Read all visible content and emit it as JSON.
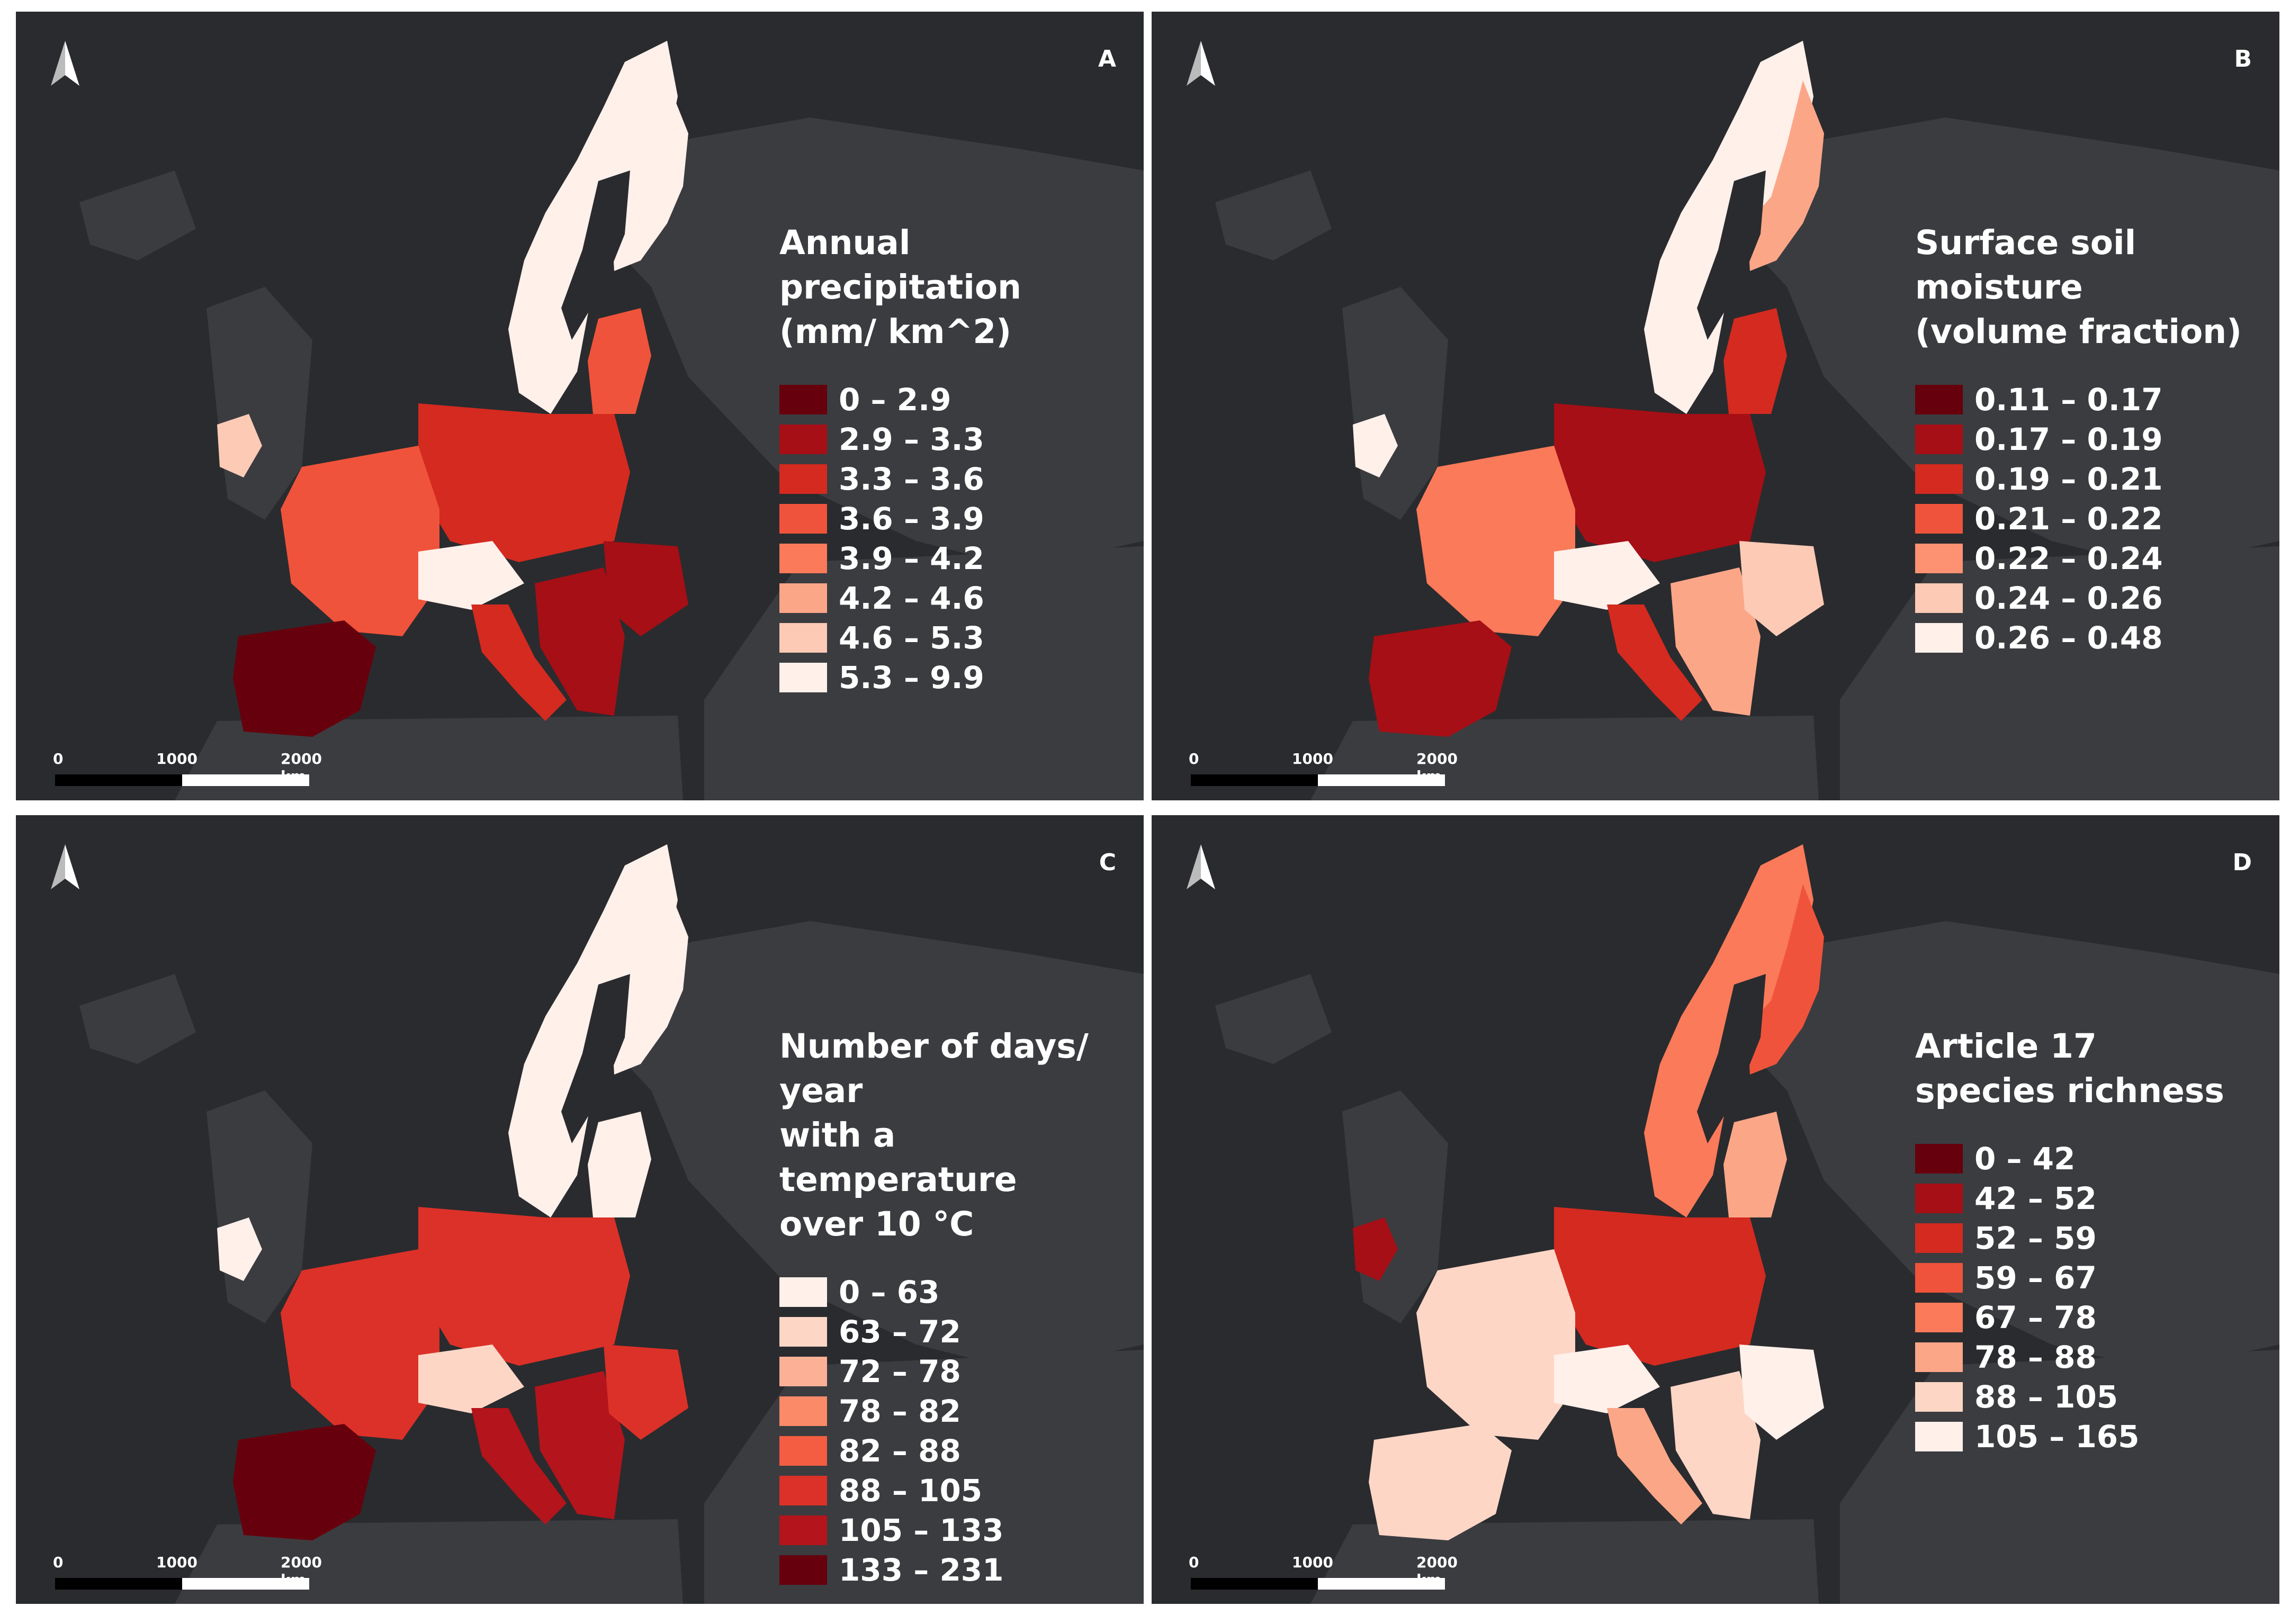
{
  "colors": {
    "background": "#2a2b2e",
    "land_other": "#3b3c40",
    "sea": "#2a2b2e"
  },
  "north_icon": "north-arrow-icon",
  "scale_bar": {
    "labels": [
      "0",
      "1000",
      "2000 km"
    ]
  },
  "panels": [
    {
      "letter": "A",
      "legend_title": "Annual precipitation\n(mm/ km^2)",
      "legend": [
        {
          "label": "0 – 2.9",
          "color": "#67000d"
        },
        {
          "label": "2.9 – 3.3",
          "color": "#a50f15"
        },
        {
          "label": "3.3 – 3.6",
          "color": "#d42a20"
        },
        {
          "label": "3.6 – 3.9",
          "color": "#f0533b"
        },
        {
          "label": "3.9 – 4.2",
          "color": "#fa7a5a"
        },
        {
          "label": "4.2 – 4.6",
          "color": "#fca688"
        },
        {
          "label": "4.6 – 5.3",
          "color": "#fdcab5"
        },
        {
          "label": "5.3 – 9.9",
          "color": "#fff0ea"
        }
      ]
    },
    {
      "letter": "B",
      "legend_title": "Surface soil moisture\n(volume fraction)",
      "legend": [
        {
          "label": "0.11 – 0.17",
          "color": "#67000d"
        },
        {
          "label": "0.17 – 0.19",
          "color": "#a50f15"
        },
        {
          "label": "0.19 – 0.21",
          "color": "#d42a20"
        },
        {
          "label": "0.21 – 0.22",
          "color": "#f0533b"
        },
        {
          "label": "0.22 – 0.24",
          "color": "#fc9272"
        },
        {
          "label": "0.24 – 0.26",
          "color": "#fdcab5"
        },
        {
          "label": "0.26 – 0.48",
          "color": "#fff0ea"
        }
      ]
    },
    {
      "letter": "C",
      "legend_title": "Number of days/ year\nwith a temperature\nover 10 °C",
      "legend": [
        {
          "label": "0 – 63",
          "color": "#fff0ea"
        },
        {
          "label": "63 – 72",
          "color": "#fdd6c6"
        },
        {
          "label": "72 – 78",
          "color": "#fcb095"
        },
        {
          "label": "78 – 82",
          "color": "#fb8a68"
        },
        {
          "label": "82 – 88",
          "color": "#f45d42"
        },
        {
          "label": "88 – 105",
          "color": "#dc3128"
        },
        {
          "label": "105 – 133",
          "color": "#b4141b"
        },
        {
          "label": "133 – 231",
          "color": "#67000d"
        }
      ]
    },
    {
      "letter": "D",
      "legend_title": "Article 17\nspecies richness",
      "legend": [
        {
          "label": "0 – 42",
          "color": "#67000d"
        },
        {
          "label": "42 – 52",
          "color": "#a50f15"
        },
        {
          "label": "52 – 59",
          "color": "#d42a20"
        },
        {
          "label": "59 – 67",
          "color": "#f0533b"
        },
        {
          "label": "67 – 78",
          "color": "#fa7a5a"
        },
        {
          "label": "78 – 88",
          "color": "#fca688"
        },
        {
          "label": "88 – 105",
          "color": "#fdd6c6"
        },
        {
          "label": "105 – 165",
          "color": "#fff0ea"
        }
      ]
    }
  ],
  "region_fills": {
    "A": {
      "scandinavia": "#fff0ea",
      "finland": "#fff0ea",
      "baltics": "#f0533b",
      "poland_germany": "#d42a20",
      "france": "#f0533b",
      "iberia": "#67000d",
      "italy": "#d42a20",
      "balkans": "#a50f15",
      "alps": "#fff0ea",
      "ireland": "#fdcab5",
      "romania": "#a50f15"
    },
    "B": {
      "scandinavia": "#fff0ea",
      "finland": "#fca688",
      "baltics": "#d42a20",
      "poland_germany": "#a50f15",
      "france": "#fa7a5a",
      "iberia": "#a50f15",
      "italy": "#d42a20",
      "balkans": "#fca688",
      "alps": "#fff0ea",
      "ireland": "#fff0ea",
      "romania": "#fdcab5"
    },
    "C": {
      "scandinavia": "#fff0ea",
      "finland": "#fff0ea",
      "baltics": "#fff0ea",
      "poland_germany": "#dc3128",
      "france": "#dc3128",
      "iberia": "#67000d",
      "italy": "#b4141b",
      "balkans": "#b4141b",
      "alps": "#fdd6c6",
      "ireland": "#fff0ea",
      "romania": "#dc3128"
    },
    "D": {
      "scandinavia": "#fa7a5a",
      "finland": "#f0533b",
      "baltics": "#fca688",
      "poland_germany": "#d42a20",
      "france": "#fdd6c6",
      "iberia": "#fdd6c6",
      "italy": "#fca688",
      "balkans": "#fdd6c6",
      "alps": "#fff0ea",
      "ireland": "#a50f15",
      "romania": "#fff0ea"
    }
  }
}
